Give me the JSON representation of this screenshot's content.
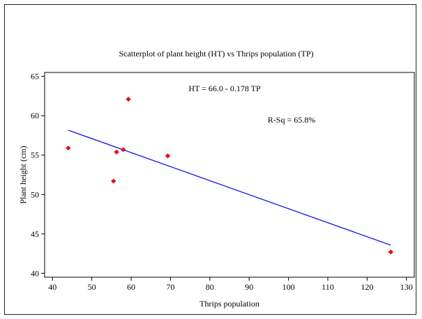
{
  "chart_data": {
    "type": "scatter",
    "title": "Scatterplot of plant height (HT) vs Thrips population (TP)",
    "xlabel": "Thrips population",
    "ylabel": "Plant height (cm)",
    "xlim": [
      38,
      132
    ],
    "ylim": [
      39.5,
      65.5
    ],
    "xticks": [
      40,
      50,
      60,
      70,
      80,
      90,
      100,
      110,
      120,
      130
    ],
    "yticks": [
      40,
      45,
      50,
      55,
      60,
      65
    ],
    "grid": false,
    "legend": "none",
    "points": [
      {
        "x": 44,
        "y": 55.9
      },
      {
        "x": 55.5,
        "y": 51.7
      },
      {
        "x": 56.3,
        "y": 55.4
      },
      {
        "x": 58,
        "y": 55.7
      },
      {
        "x": 59.3,
        "y": 62.1
      },
      {
        "x": 69.3,
        "y": 54.9
      },
      {
        "x": 126,
        "y": 42.7
      }
    ],
    "fit_line": {
      "intercept": 66.0,
      "slope": -0.178,
      "x_range": [
        44,
        126
      ]
    },
    "annotations": {
      "equation": "HT = 66.0 - 0.178 TP",
      "r_squared": "R-Sq = 65.8%"
    },
    "colors": {
      "points": "#ff0000",
      "fit_line": "#0000ff",
      "axes": "#000000"
    }
  }
}
